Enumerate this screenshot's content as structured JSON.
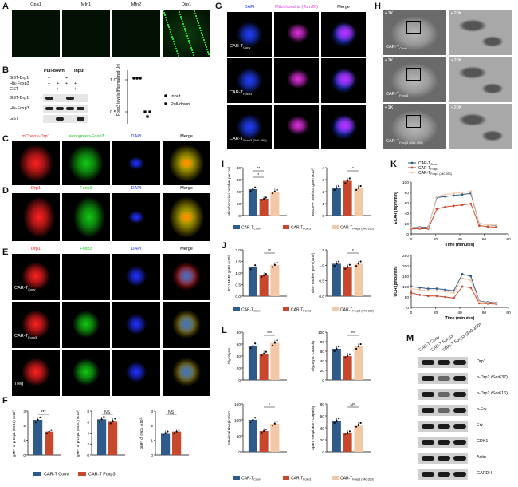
{
  "colors": {
    "conv": "#2e5b8a",
    "foxp3": "#c8482d",
    "foxp3_340": "#f3c8a6",
    "red": "#ff2020",
    "green": "#14c814",
    "blue": "#2030ff",
    "magenta": "#e030e0"
  },
  "panelA": {
    "label": "A",
    "cols": [
      "Opa1",
      "Mfn1",
      "Mfn2",
      "Drp1"
    ]
  },
  "panelB": {
    "label": "B",
    "header_pull": "Pull-down",
    "header_input": "Input",
    "rows": [
      {
        "name": "GST-Drp1",
        "marks": [
          "+",
          "",
          "+",
          ""
        ]
      },
      {
        "name": "His-Foxp3",
        "marks": [
          "+",
          "+",
          "+",
          "+"
        ]
      },
      {
        "name": "GST",
        "marks": [
          "",
          "+",
          "",
          "+"
        ]
      }
    ],
    "blots": [
      "GST-Drp1",
      "His-Foxp3",
      "GST"
    ],
    "ylabel": "Foxp3 levels (Normalized Units)",
    "yticks": [
      "1.0",
      "0.5"
    ],
    "legend": [
      "Input",
      "Pull-down"
    ]
  },
  "panelC": {
    "label": "C",
    "cols": [
      "mCherry-Drp1",
      "Neongreen-Foxp3",
      "DAPI",
      "Merge"
    ]
  },
  "panelD": {
    "label": "D",
    "cols": [
      "Drp1",
      "Foxp3",
      "DAPI",
      "Merge"
    ]
  },
  "panelE": {
    "label": "E",
    "cols": [
      "Drp1",
      "Foxp3",
      "DAPI",
      "Merge"
    ],
    "rows": [
      "CAR-T",
      "CAR-T",
      "Treg"
    ],
    "row_subs": [
      "Conv",
      "Foxp3",
      ""
    ]
  },
  "panelF": {
    "label": "F",
    "charts": [
      {
        "ylabel": "gMFI of p-Drp1 (S616) (x10³)",
        "sig": "***",
        "yticks": [
          "3",
          "2",
          "1",
          "0"
        ]
      },
      {
        "ylabel": "gMFI of p-Drp1 (S637) (x10³)",
        "sig": "NS",
        "yticks": [
          "8",
          "6",
          "4",
          "2",
          "0"
        ]
      },
      {
        "ylabel": "gMFI of Drp1 (x10³)",
        "sig": "NS",
        "yticks": [
          "3",
          "2",
          "1",
          "0"
        ]
      }
    ],
    "legend": [
      "CAR-T",
      "Conv",
      "CAR-T",
      "Foxp3"
    ]
  },
  "panelG": {
    "label": "G",
    "cols": [
      "DAPI",
      "Mitochondria (Tom20)",
      "Merge"
    ],
    "rows": [
      "CAR-T",
      "CAR-T",
      "CAR-T"
    ],
    "row_subs": [
      "Conv",
      "Foxp3",
      "Foxp3 (340-390)"
    ]
  },
  "panelH": {
    "label": "H",
    "mags": [
      "1K",
      "20K"
    ],
    "rows": [
      "CAR-T",
      "CAR-T",
      "CAR-T"
    ],
    "row_subs": [
      "Conv",
      "Foxp3",
      "Foxp3 (340-390)"
    ]
  },
  "panelI": {
    "label": "I",
    "charts": [
      {
        "ylabel": "Mitochondrion number per cell",
        "sig": [
          "**",
          "*"
        ],
        "yticks": [
          "40",
          "30",
          "20",
          "10",
          "0"
        ]
      },
      {
        "ylabel": "BODIPY 493/503 gMFI (x10³)",
        "sig": [
          "*"
        ],
        "yticks": [
          "4",
          "3",
          "2",
          "1",
          "0"
        ]
      }
    ]
  },
  "panelJ": {
    "label": "J",
    "charts": [
      {
        "ylabel": "JC-1 MMP gMFI (x10³)",
        "sig": [
          "**"
        ],
        "yticks": [
          "2.0",
          "1.5",
          "1.0",
          "0.5",
          "0.0"
        ]
      },
      {
        "ylabel": "Mito-Tracker gMFI (x10³)",
        "sig": [
          "*"
        ],
        "yticks": [
          "1.5",
          "1.0",
          "0.5",
          "0.0"
        ]
      }
    ]
  },
  "legend3": [
    "CAR-T",
    "Conv",
    "CAR-T",
    "Foxp3",
    "CAR-T",
    "Foxp3 (340-390)"
  ],
  "panelK": {
    "label": "K",
    "ecar": {
      "ylabel": "ECAR (mpH/min)",
      "xlabel": "Time (minutes)",
      "yticks": [
        "100",
        "80",
        "60",
        "40",
        "20",
        "0"
      ],
      "xticks": [
        "0",
        "20",
        "40",
        "60",
        "80"
      ]
    },
    "ocr": {
      "ylabel": "OCR (pmol/min)",
      "xlabel": "Time (minutes)",
      "yticks": [
        "250",
        "200",
        "150",
        "100",
        "50",
        "0"
      ],
      "xticks": [
        "0",
        "20",
        "40",
        "60",
        "80"
      ]
    }
  },
  "panelL": {
    "label": "L",
    "charts": [
      {
        "ylabel": "Glycolysis",
        "sig": "***",
        "yticks": [
          "80",
          "60",
          "40",
          "20",
          "0"
        ]
      },
      {
        "ylabel": "Glycolytic Capacity",
        "sig": "***",
        "yticks": [
          "100",
          "80",
          "60",
          "40",
          "20",
          "0"
        ]
      },
      {
        "ylabel": "Maximal Respiration",
        "sig": "*",
        "yticks": [
          "150",
          "100",
          "50",
          "0"
        ]
      },
      {
        "ylabel": "Spare Respiratory Capacity",
        "sig": "NS",
        "yticks": [
          "80",
          "60",
          "40",
          "20",
          "0"
        ]
      }
    ]
  },
  "panelM": {
    "label": "M",
    "lanes": [
      "CAR-T Conv",
      "CAR-T Foxp3",
      "CAR-T Foxp3 (340-390)"
    ],
    "bands": [
      "Drp1",
      "p-Drp1 (Ser637)",
      "p-Drp1 (Ser616)",
      "p-Erk",
      "Erk",
      "CDK1",
      "Actin",
      "GAPDH"
    ]
  },
  "chart_data": [
    {
      "type": "bar",
      "title": "",
      "ylabel": "gMFI of p-Drp1 (S616) (x10³)",
      "categories": [
        "CAR-T Conv",
        "CAR-T Foxp3"
      ],
      "values": [
        2.4,
        1.6
      ],
      "ylim": [
        0,
        3
      ]
    },
    {
      "type": "bar",
      "title": "",
      "ylabel": "gMFI of p-Drp1 (S637) (x10³)",
      "categories": [
        "CAR-T Conv",
        "CAR-T Foxp3"
      ],
      "values": [
        6.5,
        6.2
      ],
      "ylim": [
        0,
        8
      ]
    },
    {
      "type": "bar",
      "title": "",
      "ylabel": "gMFI of Drp1 (x10³)",
      "categories": [
        "CAR-T Conv",
        "CAR-T Foxp3"
      ],
      "values": [
        1.5,
        1.6
      ],
      "ylim": [
        0,
        3
      ]
    },
    {
      "type": "bar",
      "title": "",
      "ylabel": "Mitochondrion number per cell",
      "categories": [
        "CAR-T Conv",
        "CAR-T Foxp3",
        "CAR-T Foxp3 (340-390)"
      ],
      "values": [
        22,
        14,
        20
      ],
      "ylim": [
        0,
        40
      ]
    },
    {
      "type": "bar",
      "title": "",
      "ylabel": "BODIPY 493/503 gMFI (x10³)",
      "categories": [
        "CAR-T Conv",
        "CAR-T Foxp3",
        "CAR-T Foxp3 (340-390)"
      ],
      "values": [
        2.3,
        2.9,
        2.3
      ],
      "ylim": [
        0,
        4
      ]
    },
    {
      "type": "bar",
      "title": "",
      "ylabel": "JC-1 MMP gMFI (x10³)",
      "categories": [
        "CAR-T Conv",
        "CAR-T Foxp3",
        "CAR-T Foxp3 (340-390)"
      ],
      "values": [
        1.25,
        0.9,
        1.35
      ],
      "ylim": [
        0,
        2
      ]
    },
    {
      "type": "bar",
      "title": "",
      "ylabel": "Mito-Tracker gMFI (x10³)",
      "categories": [
        "CAR-T Conv",
        "CAR-T Foxp3",
        "CAR-T Foxp3 (340-390)"
      ],
      "values": [
        1.05,
        0.95,
        1.05
      ],
      "ylim": [
        0,
        1.5
      ]
    },
    {
      "type": "bar",
      "title": "",
      "ylabel": "Glycolysis",
      "categories": [
        "CAR-T Conv",
        "CAR-T Foxp3",
        "CAR-T Foxp3 (340-390)"
      ],
      "values": [
        57,
        44,
        62
      ],
      "ylim": [
        0,
        80
      ]
    },
    {
      "type": "bar",
      "title": "",
      "ylabel": "Glycolytic Capacity",
      "categories": [
        "CAR-T Conv",
        "CAR-T Foxp3",
        "CAR-T Foxp3 (340-390)"
      ],
      "values": [
        65,
        50,
        70
      ],
      "ylim": [
        0,
        100
      ]
    },
    {
      "type": "bar",
      "title": "",
      "ylabel": "Maximal Respiration",
      "categories": [
        "CAR-T Conv",
        "CAR-T Foxp3",
        "CAR-T Foxp3 (340-390)"
      ],
      "values": [
        100,
        65,
        88
      ],
      "ylim": [
        0,
        150
      ]
    },
    {
      "type": "bar",
      "title": "",
      "ylabel": "Spare Respiratory Capacity",
      "categories": [
        "CAR-T Conv",
        "CAR-T Foxp3",
        "CAR-T Foxp3 (340-390)"
      ],
      "values": [
        52,
        32,
        45
      ],
      "ylim": [
        0,
        80
      ]
    },
    {
      "type": "line",
      "title": "",
      "ylabel": "ECAR (mpH/min)",
      "xlabel": "Time (minutes)",
      "x": [
        0,
        7,
        14,
        21,
        28,
        35,
        42,
        49,
        56,
        63,
        70
      ],
      "series": [
        {
          "name": "CAR-T Conv",
          "values": [
            12,
            13,
            13,
            70,
            72,
            74,
            76,
            78,
            20,
            18,
            16
          ]
        },
        {
          "name": "CAR-T Foxp3",
          "values": [
            10,
            10,
            10,
            48,
            52,
            54,
            56,
            58,
            16,
            14,
            13
          ]
        },
        {
          "name": "CAR-T Foxp3 (340-390)",
          "values": [
            12,
            12,
            12,
            72,
            76,
            78,
            80,
            82,
            20,
            18,
            17
          ]
        }
      ],
      "ylim": [
        0,
        100
      ]
    },
    {
      "type": "line",
      "title": "",
      "ylabel": "OCR (pmol/min)",
      "xlabel": "Time (minutes)",
      "x": [
        0,
        7,
        14,
        21,
        28,
        35,
        42,
        49,
        56,
        63,
        70
      ],
      "series": [
        {
          "name": "CAR-T Conv",
          "values": [
            100,
            95,
            90,
            90,
            85,
            80,
            160,
            150,
            30,
            25,
            22
          ]
        },
        {
          "name": "CAR-T Foxp3",
          "values": [
            70,
            60,
            55,
            55,
            50,
            45,
            100,
            95,
            20,
            18,
            16
          ]
        },
        {
          "name": "CAR-T Foxp3 (340-390)",
          "values": [
            90,
            85,
            80,
            80,
            75,
            70,
            140,
            130,
            28,
            22,
            20
          ]
        }
      ],
      "ylim": [
        0,
        250
      ]
    }
  ]
}
